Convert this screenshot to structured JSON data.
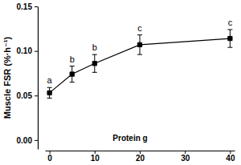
{
  "chart_data": {
    "type": "line",
    "x_label": "Protein g",
    "y_label": "Muscle FSR (%·h⁻¹)",
    "x": [
      0,
      5,
      10,
      20,
      40
    ],
    "series": [
      {
        "color": "#000000",
        "marker": "square",
        "line_style": "solid",
        "values": [
          0.053,
          0.074,
          0.086,
          0.107,
          0.114
        ],
        "errors": [
          0.006,
          0.009,
          0.01,
          0.011,
          0.01
        ],
        "annotations": [
          "a",
          "b",
          "b",
          "c",
          "c"
        ]
      }
    ],
    "xlim": [
      -1,
      41
    ],
    "xticks": [
      0,
      10,
      20,
      30,
      40
    ],
    "ylim": [
      -0.01,
      0.15
    ],
    "yticks": [
      {
        "value": 0,
        "label": "0.00"
      },
      0.05,
      {
        "value": 0.1,
        "label": "0.10"
      },
      0.15
    ],
    "grid": false
  }
}
